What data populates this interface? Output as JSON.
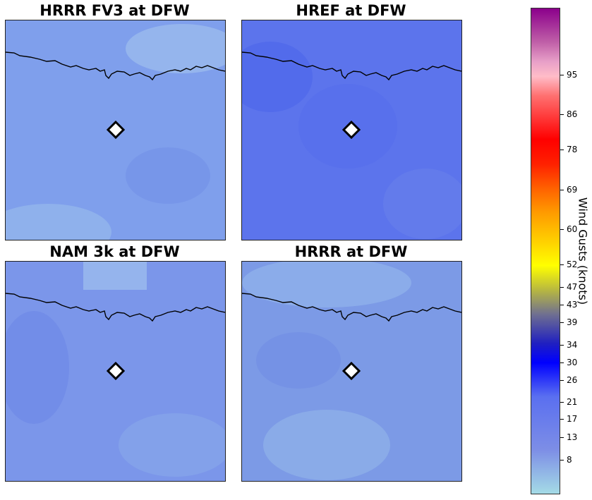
{
  "panels": [
    {
      "title": "HRRR FV3 at DFW",
      "base_color": "#7f9fec"
    },
    {
      "title": "HREF at DFW",
      "base_color": "#5c74ec"
    },
    {
      "title": "NAM 3k at DFW",
      "base_color": "#7b96ea"
    },
    {
      "title": "HRRR at DFW",
      "base_color": "#7c9ae6"
    }
  ],
  "colorbar": {
    "label": "Wind Gusts (knots)",
    "ticks": [
      "8",
      "13",
      "17",
      "21",
      "26",
      "30",
      "34",
      "39",
      "43",
      "47",
      "52",
      "60",
      "69",
      "78",
      "86",
      "95"
    ]
  },
  "colors": {
    "marker_fill": "#ffffff",
    "marker_stroke": "#000000",
    "river_line": "#000000"
  }
}
